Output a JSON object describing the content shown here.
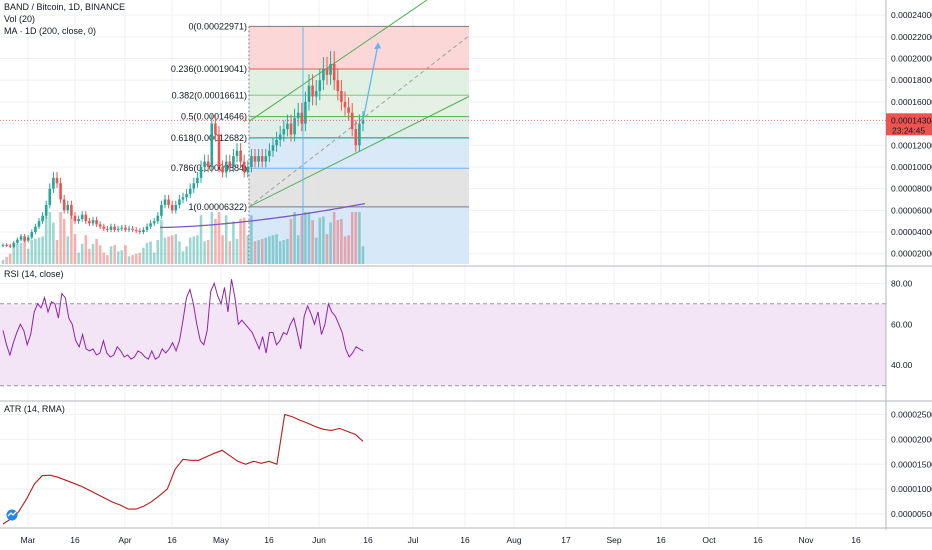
{
  "header": {
    "symbol": "BAND / Bitcoin, 1D, BINANCE",
    "vol": "Vol (20)",
    "ma": "MA · 1D (200, close, 0)"
  },
  "last_price": {
    "value": "0.00014304",
    "countdown": "23:24:45",
    "color": "#ef5350"
  },
  "colors": {
    "up": "#26a69a",
    "down": "#ef5350",
    "ma": "#7e57c2",
    "rsi": "#8e24aa",
    "rsi_band": "#f3e5f5",
    "atr": "#b71c1c",
    "channel": "#4caf50",
    "projection": "#64b5f6"
  },
  "chart_data": [
    {
      "type": "candlestick",
      "title": "BAND / Bitcoin, 1D, BINANCE",
      "x_ticks": [
        "Mar",
        "16",
        "Apr",
        "16",
        "May",
        "16",
        "Jun",
        "16",
        "Jul",
        "16",
        "Aug",
        "17",
        "Sep",
        "16",
        "Oct",
        "16",
        "Nov",
        "16"
      ],
      "y_ticks": [
        "0.00024000",
        "0.00022000",
        "0.00020000",
        "0.00018000",
        "0.00016000",
        "0.00014000",
        "0.00012000",
        "0.00010000",
        "0.00008000",
        "0.00006000",
        "0.00004000",
        "0.00002000"
      ],
      "ylim": [
        1.05e-05,
        0.000254
      ],
      "closes": [
        2.8e-05,
        2.75e-05,
        2.65e-05,
        3e-05,
        3.3e-05,
        3.6e-05,
        3.2e-05,
        3.5e-05,
        4e-05,
        4.5e-05,
        5e-05,
        5.5e-05,
        6.5e-05,
        8e-05,
        9e-05,
        8.5e-05,
        7e-05,
        6e-05,
        6.5e-05,
        5.5e-05,
        5e-05,
        5.2e-05,
        5.6e-05,
        5e-05,
        4.8e-05,
        5.1e-05,
        4.7e-05,
        4.5e-05,
        4.3e-05,
        4.2e-05,
        4.5e-05,
        4.2e-05,
        4.3e-05,
        4.4e-05,
        4.2e-05,
        4.3e-05,
        4.2e-05,
        4.1e-05,
        4e-05,
        4.2e-05,
        4.5e-05,
        4.8e-05,
        5e-05,
        5.5e-05,
        6.5e-05,
        7e-05,
        6.5e-05,
        6e-05,
        6.5e-05,
        7e-05,
        7.2e-05,
        7.5e-05,
        8e-05,
        8.5e-05,
        9e-05,
        0.0001,
        0.000105,
        0.0001,
        0.00014,
        0.00013,
        0.0001,
        9.5e-05,
        0.000105,
        0.0001,
        0.00011,
        0.000115,
        0.000105,
        9.5e-05,
        0.0001,
        0.00011,
        0.000105,
        0.00011,
        0.000105,
        0.00011,
        0.000115,
        0.00012,
        0.000125,
        0.00013,
        0.000135,
        0.00014,
        0.00013,
        0.000145,
        0.00015,
        0.00014,
        0.00016,
        0.000175,
        0.000165,
        0.00017,
        0.00018,
        0.00019,
        0.000185,
        0.000195,
        0.00018,
        0.00017,
        0.00016,
        0.000155,
        0.00015,
        0.000135,
        0.00012,
        0.00014,
        0.000143
      ],
      "volume": {
        "name": "Vol (20)"
      },
      "moving_average": {
        "name": "MA · 1D (200, close, 0)"
      },
      "fibonacci": [
        {
          "ratio": "0",
          "value": 0.00022971,
          "label": "0(0.00022971)"
        },
        {
          "ratio": "0.236",
          "value": 0.00019041,
          "label": "0.236(0.00019041)"
        },
        {
          "ratio": "0.382",
          "value": 0.00016611,
          "label": "0.382(0.00016611)"
        },
        {
          "ratio": "0.5",
          "value": 0.00014646,
          "label": "0.5(0.00014646)"
        },
        {
          "ratio": "0.618",
          "value": 0.00012682,
          "label": "0.618(0.00012682)"
        },
        {
          "ratio": "0.786",
          "value": 9.884e-05,
          "label": "0.786(0.00009884)"
        },
        {
          "ratio": "1",
          "value": 6.322e-05,
          "label": "1(0.00006322)"
        }
      ]
    },
    {
      "type": "line",
      "title": "RSI (14, close)",
      "y_ticks": [
        "80.00",
        "60.00",
        "40.00"
      ],
      "ylim": [
        24,
        87
      ],
      "band": [
        30,
        70
      ],
      "values": [
        57,
        50,
        45,
        51,
        56,
        60,
        57,
        50,
        55,
        66,
        70,
        68,
        73,
        66,
        71,
        70,
        63,
        75,
        73,
        63,
        60,
        52,
        49,
        55,
        48,
        47,
        48,
        45,
        46,
        52,
        46,
        44,
        45,
        49,
        47,
        44,
        45,
        43,
        44,
        47,
        46,
        44,
        43,
        47,
        43,
        44,
        48,
        46,
        48,
        51,
        47,
        52,
        62,
        73,
        77,
        70,
        60,
        52,
        50,
        57,
        76,
        80,
        74,
        70,
        78,
        66,
        82,
        73,
        60,
        62,
        60,
        58,
        56,
        52,
        48,
        54,
        46,
        56,
        56,
        50,
        52,
        56,
        55,
        60,
        63,
        56,
        48,
        64,
        69,
        65,
        60,
        66,
        55,
        60,
        70,
        66,
        64,
        60,
        56,
        48,
        44,
        46,
        49,
        48,
        47
      ],
      "name": "RSI (14, close)"
    },
    {
      "type": "line",
      "title": "ATR (14, RMA)",
      "y_ticks": [
        "0.00002500",
        "0.00002000",
        "0.00001500",
        "0.00001000",
        "0.00000500"
      ],
      "ylim": [
        2.8e-06,
        2.71e-05
      ],
      "values": [
        3e-06,
        4e-06,
        5.5e-06,
        8e-06,
        1.1e-05,
        1.27e-05,
        1.28e-05,
        1.24e-05,
        1.18e-05,
        1.12e-05,
        1.06e-05,
        9.8e-06,
        9e-06,
        8.2e-06,
        7.4e-06,
        6.8e-06,
        6e-06,
        6e-06,
        6.6e-06,
        7.5e-06,
        8.7e-06,
        1e-05,
        1.4e-05,
        1.6e-05,
        1.58e-05,
        1.58e-05,
        1.65e-05,
        1.72e-05,
        1.78e-05,
        1.67e-05,
        1.56e-05,
        1.5e-05,
        1.56e-05,
        1.52e-05,
        1.56e-05,
        1.5e-05,
        2.5e-05,
        2.45e-05,
        2.38e-05,
        2.32e-05,
        2.25e-05,
        2.2e-05,
        2.18e-05,
        2.22e-05,
        2.16e-05,
        2.1e-05,
        1.96e-05
      ],
      "name": "ATR (14, RMA)"
    }
  ]
}
